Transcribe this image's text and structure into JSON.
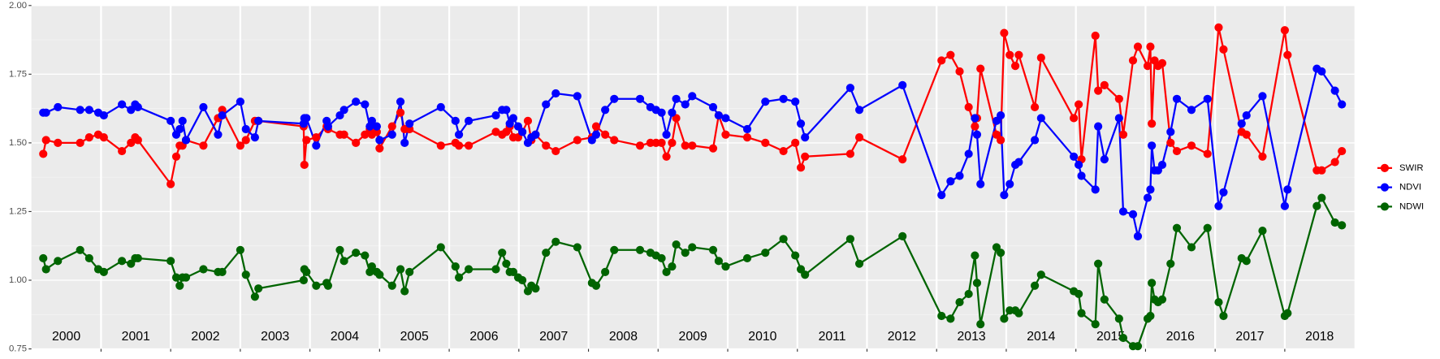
{
  "chart_data": {
    "type": "line",
    "x": [
      2000.17,
      2000.21,
      2000.38,
      2000.7,
      2000.83,
      2000.96,
      2001.04,
      2001.3,
      2001.43,
      2001.49,
      2001.53,
      2002.0,
      2002.08,
      2002.13,
      2002.17,
      2002.22,
      2002.47,
      2002.68,
      2002.74,
      2003.0,
      2003.08,
      2003.21,
      2003.26,
      2003.91,
      2003.92,
      2003.95,
      2004.09,
      2004.24,
      2004.26,
      2004.43,
      2004.49,
      2004.66,
      2004.79,
      2004.86,
      2004.89,
      2004.96,
      2005.0,
      2005.18,
      2005.3,
      2005.36,
      2005.43,
      2005.88,
      2006.09,
      2006.14,
      2006.28,
      2006.67,
      2006.76,
      2006.82,
      2006.87,
      2006.92,
      2006.99,
      2007.05,
      2007.13,
      2007.18,
      2007.24,
      2007.39,
      2007.53,
      2007.84,
      2008.05,
      2008.11,
      2008.24,
      2008.37,
      2008.74,
      2008.89,
      2008.97,
      2009.05,
      2009.12,
      2009.2,
      2009.26,
      2009.39,
      2009.49,
      2009.79,
      2009.87,
      2009.97,
      2010.28,
      2010.54,
      2010.8,
      2010.97,
      2011.05,
      2011.11,
      2011.76,
      2011.89,
      2012.51,
      2013.07,
      2013.2,
      2013.33,
      2013.46,
      2013.55,
      2013.58,
      2013.63,
      2013.86,
      2013.92,
      2013.97,
      2014.05,
      2014.13,
      2014.18,
      2014.41,
      2014.5,
      2014.97,
      2015.04,
      2015.08,
      2015.28,
      2015.32,
      2015.41,
      2015.62,
      2015.68,
      2015.82,
      2015.89,
      2016.03,
      2016.07,
      2016.09,
      2016.13,
      2016.18,
      2016.24,
      2016.36,
      2016.45,
      2016.66,
      2016.89,
      2017.05,
      2017.12,
      2017.38,
      2017.45,
      2017.68,
      2018.0,
      2018.04,
      2018.46,
      2018.53,
      2018.72,
      2018.82
    ],
    "series": [
      {
        "name": "SWIR",
        "color": "#ff0000",
        "values": [
          1.46,
          1.51,
          1.5,
          1.5,
          1.52,
          1.53,
          1.52,
          1.47,
          1.5,
          1.52,
          1.51,
          1.35,
          1.45,
          1.49,
          1.49,
          1.51,
          1.49,
          1.59,
          1.62,
          1.49,
          1.51,
          1.58,
          1.58,
          1.56,
          1.42,
          1.51,
          1.52,
          1.56,
          1.55,
          1.53,
          1.53,
          1.5,
          1.53,
          1.55,
          1.53,
          1.54,
          1.48,
          1.56,
          1.61,
          1.55,
          1.55,
          1.49,
          1.5,
          1.49,
          1.49,
          1.54,
          1.53,
          1.54,
          1.56,
          1.52,
          1.52,
          1.54,
          1.58,
          1.51,
          1.53,
          1.49,
          1.47,
          1.51,
          1.52,
          1.56,
          1.53,
          1.51,
          1.49,
          1.5,
          1.5,
          1.5,
          1.45,
          1.5,
          1.59,
          1.49,
          1.49,
          1.48,
          1.6,
          1.53,
          1.52,
          1.5,
          1.47,
          1.5,
          1.41,
          1.45,
          1.46,
          1.52,
          1.44,
          1.8,
          1.82,
          1.76,
          1.63,
          1.56,
          1.59,
          1.77,
          1.53,
          1.51,
          1.9,
          1.82,
          1.78,
          1.82,
          1.63,
          1.81,
          1.59,
          1.64,
          1.44,
          1.89,
          1.69,
          1.71,
          1.66,
          1.53,
          1.8,
          1.85,
          1.78,
          1.85,
          1.57,
          1.8,
          1.78,
          1.79,
          1.5,
          1.47,
          1.49,
          1.46,
          1.92,
          1.84,
          1.54,
          1.53,
          1.45,
          1.91,
          1.82,
          1.4,
          1.4,
          1.43,
          1.47
        ]
      },
      {
        "name": "NDVI",
        "color": "#0000ff",
        "values": [
          1.61,
          1.61,
          1.63,
          1.62,
          1.62,
          1.61,
          1.6,
          1.64,
          1.62,
          1.64,
          1.63,
          1.58,
          1.53,
          1.55,
          1.58,
          1.51,
          1.63,
          1.53,
          1.6,
          1.65,
          1.55,
          1.52,
          1.58,
          1.57,
          1.59,
          1.59,
          1.49,
          1.58,
          1.56,
          1.6,
          1.62,
          1.65,
          1.64,
          1.56,
          1.58,
          1.56,
          1.51,
          1.53,
          1.65,
          1.5,
          1.57,
          1.63,
          1.58,
          1.53,
          1.58,
          1.6,
          1.62,
          1.62,
          1.57,
          1.59,
          1.56,
          1.54,
          1.5,
          1.52,
          1.53,
          1.64,
          1.68,
          1.67,
          1.51,
          1.53,
          1.62,
          1.66,
          1.66,
          1.63,
          1.62,
          1.61,
          1.53,
          1.61,
          1.66,
          1.64,
          1.67,
          1.63,
          1.6,
          1.59,
          1.55,
          1.65,
          1.66,
          1.65,
          1.57,
          1.52,
          1.7,
          1.62,
          1.71,
          1.31,
          1.36,
          1.38,
          1.46,
          1.59,
          1.53,
          1.35,
          1.58,
          1.6,
          1.31,
          1.35,
          1.42,
          1.43,
          1.51,
          1.59,
          1.45,
          1.42,
          1.38,
          1.33,
          1.56,
          1.44,
          1.59,
          1.25,
          1.24,
          1.16,
          1.3,
          1.33,
          1.49,
          1.4,
          1.4,
          1.42,
          1.54,
          1.66,
          1.62,
          1.66,
          1.27,
          1.32,
          1.57,
          1.6,
          1.67,
          1.27,
          1.33,
          1.77,
          1.76,
          1.69,
          1.64
        ]
      },
      {
        "name": "NDWI",
        "color": "#006400",
        "values": [
          1.08,
          1.04,
          1.07,
          1.11,
          1.08,
          1.04,
          1.03,
          1.07,
          1.06,
          1.08,
          1.08,
          1.07,
          1.01,
          0.98,
          1.01,
          1.01,
          1.04,
          1.03,
          1.03,
          1.11,
          1.02,
          0.94,
          0.97,
          1.0,
          1.04,
          1.03,
          0.98,
          0.99,
          0.98,
          1.11,
          1.07,
          1.1,
          1.09,
          1.03,
          1.05,
          1.03,
          1.02,
          0.98,
          1.04,
          0.96,
          1.03,
          1.12,
          1.05,
          1.01,
          1.04,
          1.04,
          1.1,
          1.06,
          1.03,
          1.03,
          1.01,
          1.0,
          0.96,
          0.98,
          0.97,
          1.1,
          1.14,
          1.12,
          0.99,
          0.98,
          1.03,
          1.11,
          1.11,
          1.1,
          1.09,
          1.08,
          1.03,
          1.05,
          1.13,
          1.1,
          1.12,
          1.11,
          1.07,
          1.05,
          1.08,
          1.1,
          1.15,
          1.09,
          1.04,
          1.02,
          1.15,
          1.06,
          1.16,
          0.87,
          0.86,
          0.92,
          0.95,
          1.09,
          0.99,
          0.84,
          1.12,
          1.1,
          0.86,
          0.89,
          0.89,
          0.88,
          0.98,
          1.02,
          0.96,
          0.95,
          0.88,
          0.84,
          1.06,
          0.93,
          0.86,
          0.79,
          0.76,
          0.76,
          0.86,
          0.87,
          0.99,
          0.93,
          0.92,
          0.93,
          1.06,
          1.19,
          1.12,
          1.19,
          0.92,
          0.87,
          1.08,
          1.07,
          1.18,
          0.87,
          0.88,
          1.27,
          1.3,
          1.21,
          1.2
        ]
      }
    ],
    "xlim": [
      2000,
      2019
    ],
    "xticks": [
      2001,
      2002,
      2003,
      2004,
      2005,
      2006,
      2007,
      2008,
      2009,
      2010,
      2011,
      2012,
      2013,
      2014,
      2015,
      2016,
      2017,
      2018
    ],
    "x_labels": [
      {
        "value": 2000.5,
        "label": "2000"
      },
      {
        "value": 2001.5,
        "label": "2001"
      },
      {
        "value": 2002.5,
        "label": "2002"
      },
      {
        "value": 2003.5,
        "label": "2003"
      },
      {
        "value": 2004.5,
        "label": "2004"
      },
      {
        "value": 2005.5,
        "label": "2005"
      },
      {
        "value": 2006.5,
        "label": "2006"
      },
      {
        "value": 2007.5,
        "label": "2007"
      },
      {
        "value": 2008.5,
        "label": "2008"
      },
      {
        "value": 2009.5,
        "label": "2009"
      },
      {
        "value": 2010.5,
        "label": "2010"
      },
      {
        "value": 2011.5,
        "label": "2011"
      },
      {
        "value": 2012.5,
        "label": "2012"
      },
      {
        "value": 2013.5,
        "label": "2013"
      },
      {
        "value": 2014.5,
        "label": "2014"
      },
      {
        "value": 2015.5,
        "label": "2015"
      },
      {
        "value": 2016.5,
        "label": "2016"
      },
      {
        "value": 2017.5,
        "label": "2017"
      },
      {
        "value": 2018.5,
        "label": "2018"
      }
    ],
    "ylim": [
      0.75,
      2.0
    ],
    "yticks": [
      {
        "value": 0.75,
        "label": "0.75"
      },
      {
        "value": 1,
        "label": "1.00"
      },
      {
        "value": 1.25,
        "label": "1.25"
      },
      {
        "value": 1.5,
        "label": "1.50"
      },
      {
        "value": 1.75,
        "label": "1.75"
      },
      {
        "value": 2,
        "label": "2.00"
      }
    ],
    "grid": true,
    "legend": "right"
  }
}
